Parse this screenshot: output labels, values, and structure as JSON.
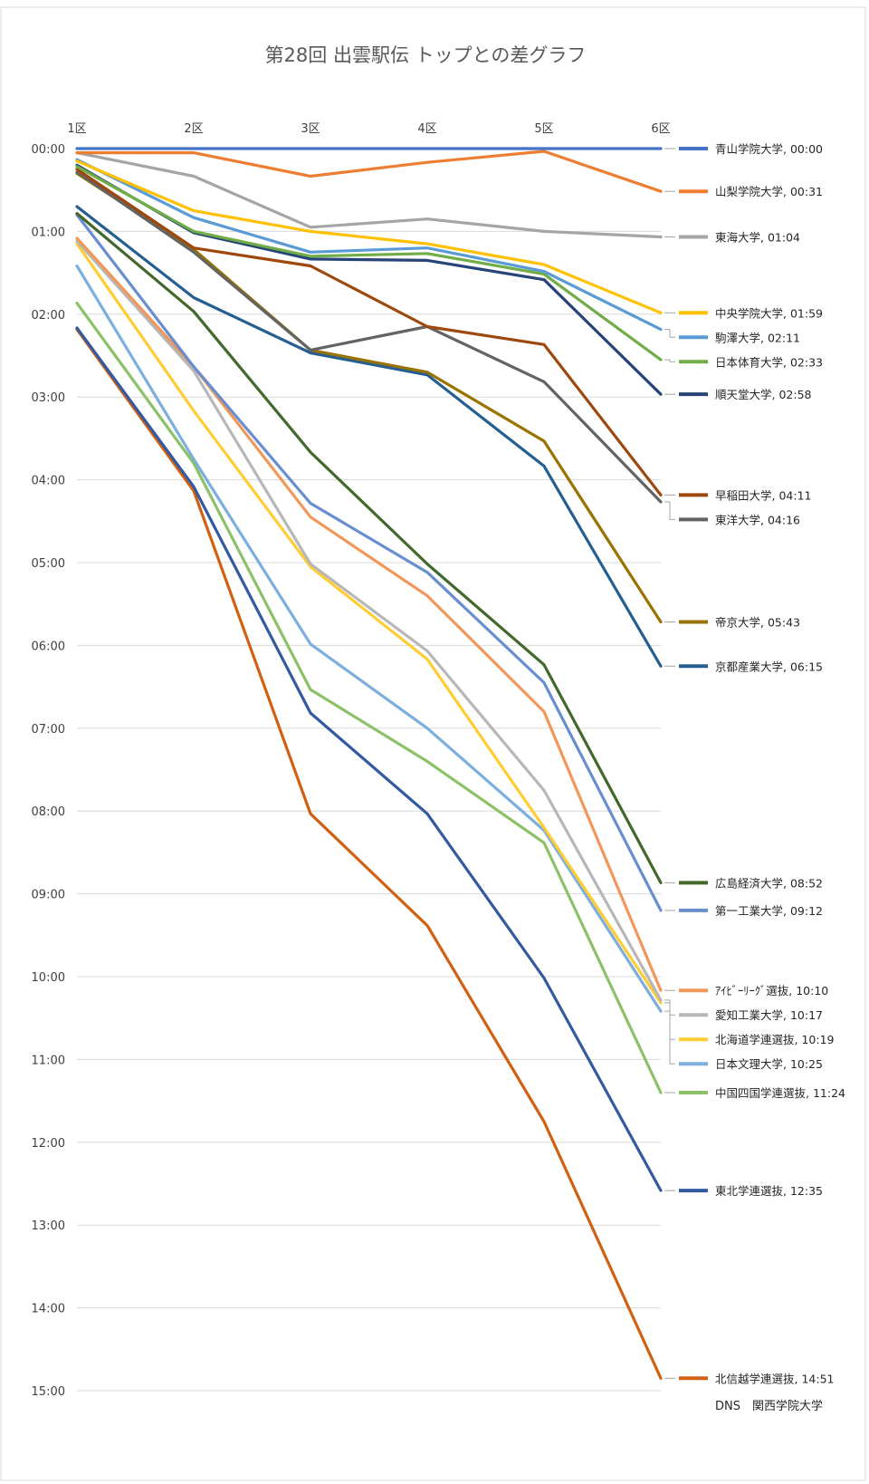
{
  "chart_data": {
    "type": "line",
    "title": "第28回 出雲駅伝 トップとの差グラフ",
    "xlabel": "",
    "ylabel": "",
    "categories": [
      "1区",
      "2区",
      "3区",
      "4区",
      "5区",
      "6区"
    ],
    "y_tick_labels": [
      "00:00",
      "01:00",
      "02:00",
      "03:00",
      "04:00",
      "05:00",
      "06:00",
      "07:00",
      "08:00",
      "09:00",
      "10:00",
      "11:00",
      "12:00",
      "13:00",
      "14:00",
      "15:00"
    ],
    "ylim_seconds": [
      0,
      900
    ],
    "y_axis_inverted": true,
    "grid": true,
    "legend": "data labels at right end",
    "series": [
      {
        "name": "青山学院大学",
        "end_label": "青山学院大学, 00:00",
        "color": "#4472C4",
        "values": [
          0,
          0,
          0,
          0,
          0,
          0
        ]
      },
      {
        "name": "山梨学院大学",
        "end_label": "山梨学院大学, 00:31",
        "color": "#ED7D31",
        "values": [
          3,
          3,
          20,
          10,
          2,
          31
        ]
      },
      {
        "name": "東海大学",
        "end_label": "東海大学, 01:04",
        "color": "#A5A5A5",
        "values": [
          3,
          20,
          57,
          51,
          60,
          64
        ]
      },
      {
        "name": "中央学院大学",
        "end_label": "中央学院大学, 01:59",
        "color": "#FFC000",
        "values": [
          9,
          45,
          60,
          69,
          84,
          119
        ]
      },
      {
        "name": "駒澤大学",
        "end_label": "駒澤大学, 02:11",
        "color": "#5B9BD5",
        "values": [
          8,
          50,
          75,
          72,
          89,
          131
        ]
      },
      {
        "name": "日本体育大学",
        "end_label": "日本体育大学, 02:33",
        "color": "#70AD47",
        "values": [
          13,
          60,
          78,
          76,
          91,
          153
        ]
      },
      {
        "name": "順天堂大学",
        "end_label": "順天堂大学, 02:58",
        "color": "#264478",
        "values": [
          12,
          61,
          80,
          81,
          95,
          178
        ]
      },
      {
        "name": "早稲田大学",
        "end_label": "早稲田大学, 04:11",
        "color": "#9E480E",
        "values": [
          15,
          72,
          85,
          129,
          142,
          251
        ]
      },
      {
        "name": "東洋大学",
        "end_label": "東洋大学, 04:16",
        "color": "#636363",
        "values": [
          17,
          75,
          146,
          129,
          169,
          256
        ]
      },
      {
        "name": "帝京大学",
        "end_label": "帝京大学, 05:43",
        "color": "#997300",
        "values": [
          18,
          73,
          146,
          162,
          212,
          343
        ]
      },
      {
        "name": "京都産業大学",
        "end_label": "京都産業大学, 06:15",
        "color": "#255E91",
        "values": [
          42,
          108,
          148,
          164,
          230,
          375
        ]
      },
      {
        "name": "広島経済大学",
        "end_label": "広島経済大学, 08:52",
        "color": "#43682B",
        "values": [
          47,
          118,
          220,
          301,
          374,
          532
        ]
      },
      {
        "name": "第一工業大学",
        "end_label": "第一工業大学, 09:12",
        "color": "#698ED0",
        "values": [
          48,
          158,
          257,
          307,
          387,
          552
        ]
      },
      {
        "name": "ｱｲﾋﾞｰﾘｰｸﾞ選抜",
        "end_label": "ｱｲﾋﾞｰﾘｰｸﾞ選抜, 10:10",
        "color": "#F1975A",
        "values": [
          65,
          158,
          267,
          324,
          408,
          610
        ]
      },
      {
        "name": "愛知工業大学",
        "end_label": "愛知工業大学, 10:17",
        "color": "#B7B7B7",
        "values": [
          67,
          161,
          301,
          364,
          465,
          617
        ]
      },
      {
        "name": "北海道学連選抜",
        "end_label": "北海道学連選抜, 10:19",
        "color": "#FFCD33",
        "values": [
          69,
          190,
          303,
          370,
          492,
          619
        ]
      },
      {
        "name": "日本文理大学",
        "end_label": "日本文理大学, 10:25",
        "color": "#7CAFDD",
        "values": [
          85,
          225,
          359,
          420,
          494,
          625
        ]
      },
      {
        "name": "中国四国学連選抜",
        "end_label": "中国四国学連選抜, 11:24",
        "color": "#8CC168",
        "values": [
          112,
          228,
          392,
          444,
          503,
          684
        ]
      },
      {
        "name": "東北学連選抜",
        "end_label": "東北学連選抜, 12:35",
        "color": "#335AA1",
        "values": [
          130,
          245,
          409,
          482,
          601,
          755
        ]
      },
      {
        "name": "北信越学連選抜",
        "end_label": "北信越学連選抜, 14:51",
        "color": "#D26012",
        "values": [
          131,
          248,
          482,
          563,
          705,
          891
        ]
      }
    ]
  },
  "footer": {
    "credit": "DNS　関西学院大学"
  },
  "colors": {
    "grid": "#D9D9D9",
    "text": "#404040",
    "title": "#595959",
    "border": "#D9D9D9"
  }
}
